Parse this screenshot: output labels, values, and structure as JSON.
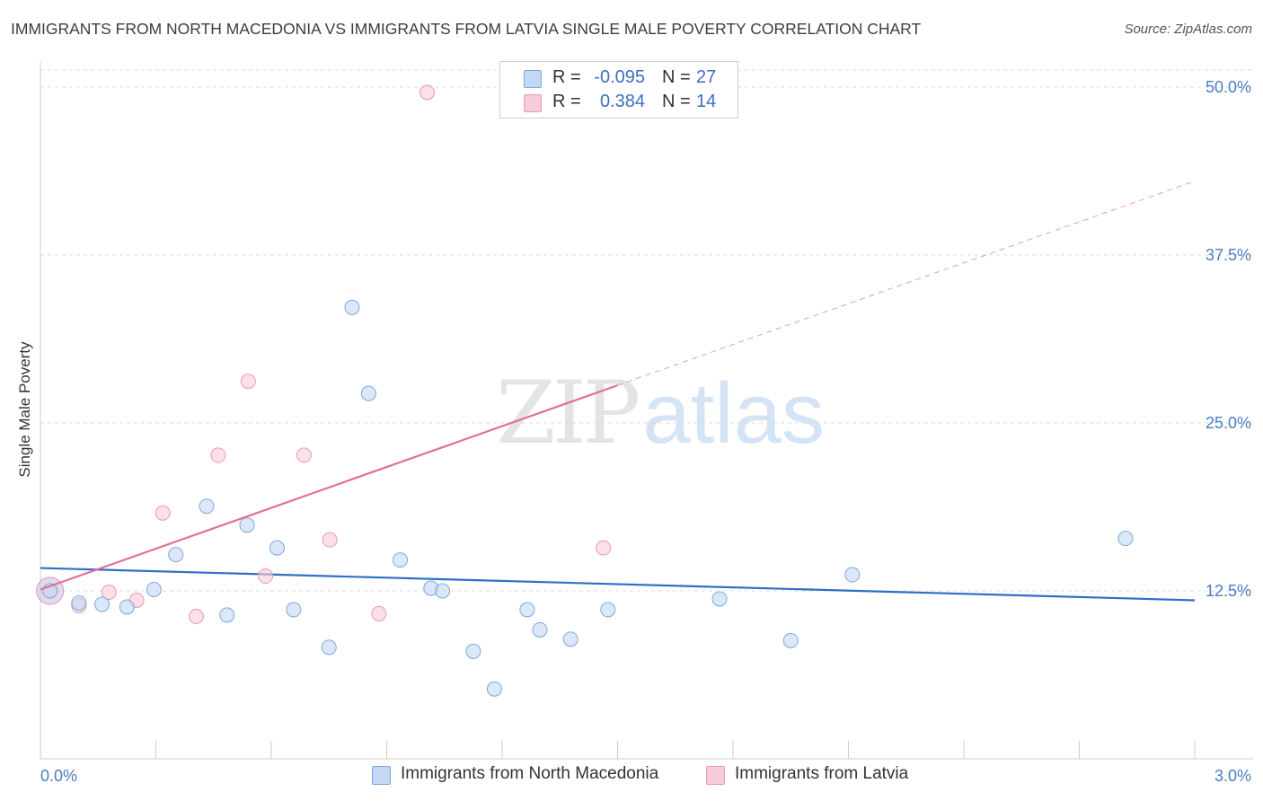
{
  "title": "IMMIGRANTS FROM NORTH MACEDONIA VS IMMIGRANTS FROM LATVIA SINGLE MALE POVERTY CORRELATION CHART",
  "source": "Source: ZipAtlas.com",
  "watermark": {
    "zip": "ZIP",
    "atlas": "atlas"
  },
  "legend": {
    "series1": {
      "r_label": "R =",
      "r_value": "-0.095",
      "n_label": "N =",
      "n_value": "27"
    },
    "series2": {
      "r_label": "R =",
      "r_value": "0.384",
      "n_label": "N =",
      "n_value": "14"
    }
  },
  "colors": {
    "blue_fill": "#c2d8f5",
    "blue_stroke": "#7fa7da",
    "blue_line": "#2f6fc6",
    "pink_fill": "#f8cbd8",
    "pink_stroke": "#e99ab2",
    "pink_line": "#e07098",
    "grid": "#dddddd",
    "axis": "#cccccc",
    "tick_label": "#4a7cc0"
  },
  "chart_data": {
    "type": "scatter",
    "xlabel": "",
    "ylabel": "Single Male Poverty",
    "xlim": [
      0,
      3.0
    ],
    "ylim": [
      0,
      52
    ],
    "x_tick_labels": [
      "0.0%",
      "3.0%"
    ],
    "y_ticks": [
      12.5,
      25.0,
      37.5,
      50.0
    ],
    "y_tick_labels": [
      "12.5%",
      "25.0%",
      "37.5%",
      "50.0%"
    ],
    "grid": true,
    "legend_position": "top-center",
    "series": [
      {
        "name": "Immigrants from North Macedonia",
        "color": "#c2d8f5",
        "points": [
          [
            0.025,
            12.5
          ],
          [
            0.1,
            11.6
          ],
          [
            0.16,
            11.5
          ],
          [
            0.225,
            11.3
          ],
          [
            0.295,
            12.6
          ],
          [
            0.352,
            15.2
          ],
          [
            0.432,
            18.8
          ],
          [
            0.485,
            10.7
          ],
          [
            0.537,
            17.4
          ],
          [
            0.615,
            15.7
          ],
          [
            0.658,
            11.1
          ],
          [
            0.75,
            8.3
          ],
          [
            0.81,
            33.6
          ],
          [
            0.853,
            27.2
          ],
          [
            0.935,
            14.8
          ],
          [
            1.015,
            12.7
          ],
          [
            1.045,
            12.5
          ],
          [
            1.125,
            8.0
          ],
          [
            1.18,
            5.2
          ],
          [
            1.265,
            11.1
          ],
          [
            1.298,
            9.6
          ],
          [
            1.378,
            8.9
          ],
          [
            1.475,
            11.1
          ],
          [
            1.765,
            11.9
          ],
          [
            1.95,
            8.8
          ],
          [
            2.11,
            13.7
          ],
          [
            2.82,
            16.4
          ]
        ],
        "trend": {
          "x": [
            0.0,
            3.0
          ],
          "y": [
            14.2,
            11.8
          ]
        }
      },
      {
        "name": "Immigrants from Latvia",
        "color": "#f8cbd8",
        "points": [
          [
            0.025,
            12.5
          ],
          [
            0.1,
            11.4
          ],
          [
            0.178,
            12.4
          ],
          [
            0.25,
            11.8
          ],
          [
            0.318,
            18.3
          ],
          [
            0.405,
            10.6
          ],
          [
            0.462,
            22.6
          ],
          [
            0.54,
            28.1
          ],
          [
            0.585,
            13.6
          ],
          [
            0.685,
            22.6
          ],
          [
            0.752,
            16.3
          ],
          [
            0.88,
            10.8
          ],
          [
            1.005,
            49.6
          ],
          [
            1.463,
            15.7
          ]
        ],
        "trend": {
          "x": [
            0.0,
            1.5
          ],
          "y": [
            12.6,
            27.8
          ],
          "extended_x": [
            1.5,
            3.0
          ],
          "extended_y": [
            27.8,
            43.0
          ]
        }
      }
    ]
  }
}
